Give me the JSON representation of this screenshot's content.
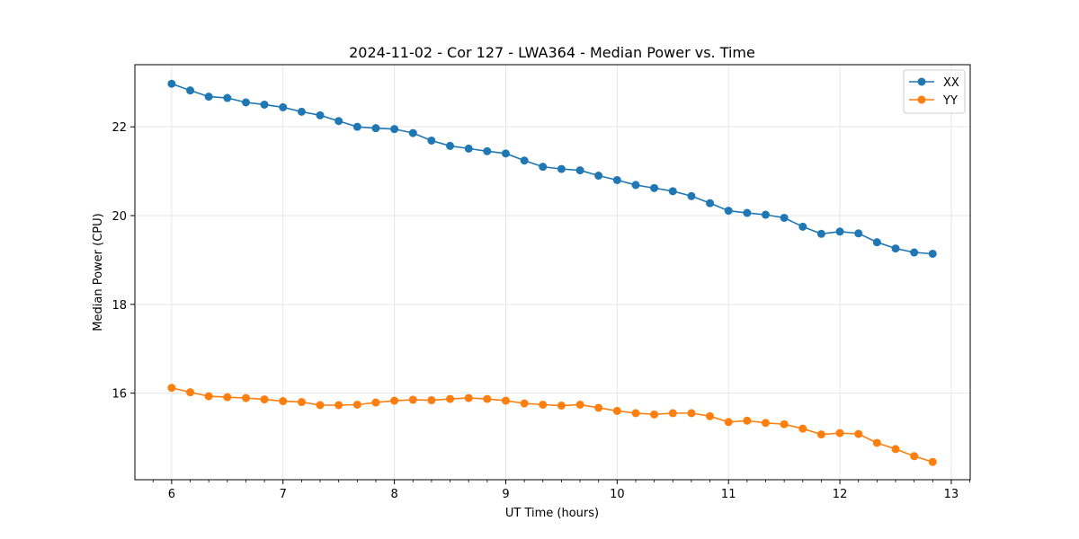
{
  "chart_data": {
    "type": "line",
    "title": "2024-11-02 - Cor 127 - LWA364 - Median Power vs. Time",
    "xlabel": "UT Time (hours)",
    "ylabel": "Median Power (CPU)",
    "xlim": [
      5.67,
      13.17
    ],
    "ylim": [
      14.05,
      23.4
    ],
    "xticks": [
      6,
      7,
      8,
      9,
      10,
      11,
      12,
      13
    ],
    "yticks": [
      16,
      18,
      20,
      22
    ],
    "grid": true,
    "legend_position": "top-right",
    "x": [
      6.0,
      6.167,
      6.333,
      6.5,
      6.667,
      6.833,
      7.0,
      7.167,
      7.333,
      7.5,
      7.667,
      7.833,
      8.0,
      8.167,
      8.333,
      8.5,
      8.667,
      8.833,
      9.0,
      9.167,
      9.333,
      9.5,
      9.667,
      9.833,
      10.0,
      10.167,
      10.333,
      10.5,
      10.667,
      10.833,
      11.0,
      11.167,
      11.333,
      11.5,
      11.667,
      11.833,
      12.0,
      12.167,
      12.333,
      12.5,
      12.667,
      12.833
    ],
    "series": [
      {
        "name": "XX",
        "color": "#1f77b4",
        "values": [
          22.97,
          22.82,
          22.68,
          22.65,
          22.55,
          22.5,
          22.44,
          22.34,
          22.26,
          22.13,
          22.0,
          21.97,
          21.95,
          21.86,
          21.69,
          21.57,
          21.51,
          21.45,
          21.4,
          21.24,
          21.1,
          21.05,
          21.02,
          20.9,
          20.8,
          20.69,
          20.62,
          20.55,
          20.44,
          20.28,
          20.11,
          20.06,
          20.02,
          19.95,
          19.75,
          19.59,
          19.64,
          19.6,
          19.4,
          19.26,
          19.17,
          19.14
        ]
      },
      {
        "name": "YY",
        "color": "#ff7f0e",
        "values": [
          16.12,
          16.02,
          15.93,
          15.91,
          15.89,
          15.86,
          15.82,
          15.8,
          15.73,
          15.73,
          15.74,
          15.79,
          15.83,
          15.85,
          15.84,
          15.87,
          15.89,
          15.87,
          15.83,
          15.77,
          15.74,
          15.72,
          15.74,
          15.67,
          15.6,
          15.55,
          15.52,
          15.55,
          15.55,
          15.48,
          15.35,
          15.38,
          15.33,
          15.3,
          15.2,
          15.07,
          15.1,
          15.08,
          14.88,
          14.74,
          14.58,
          14.45
        ]
      }
    ]
  }
}
